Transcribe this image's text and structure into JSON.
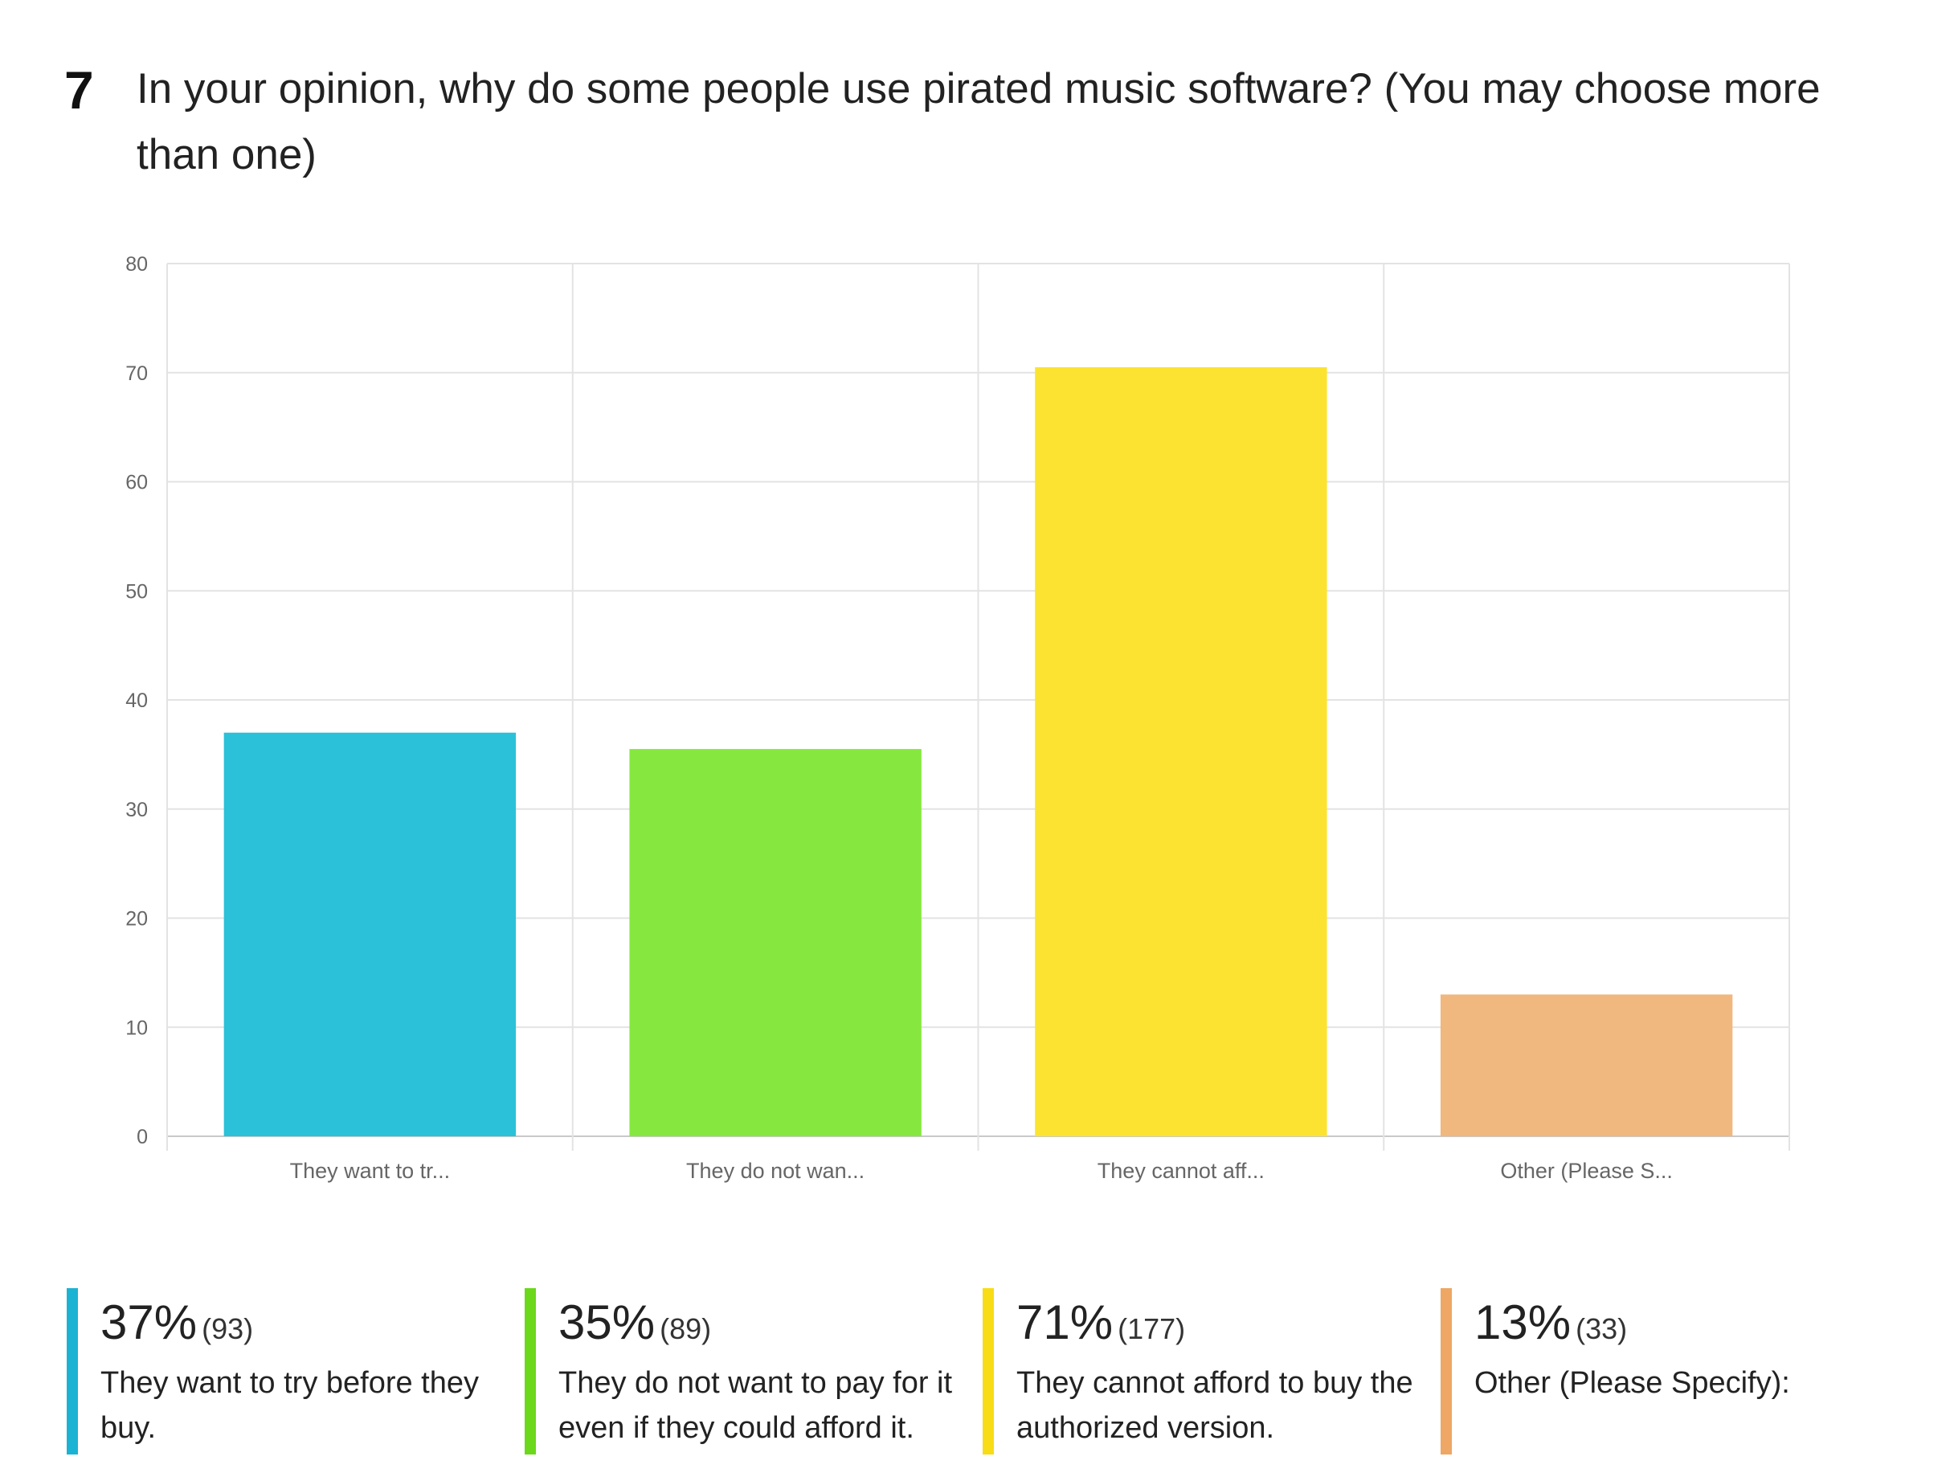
{
  "question": {
    "number": "7",
    "text": "In your opinion, why do some people use pirated music software? (You may choose more than one)"
  },
  "chart_data": {
    "type": "bar",
    "categories": [
      "They want to tr...",
      "They do not wan...",
      "They cannot aff...",
      "Other (Please S..."
    ],
    "values": [
      37,
      35.5,
      70.5,
      13
    ],
    "colors": [
      "#2ac1d9",
      "#86e83e",
      "#fce331",
      "#f0b77e"
    ],
    "ylim": [
      0,
      80
    ],
    "yticks": [
      0,
      10,
      20,
      30,
      40,
      50,
      60,
      70,
      80
    ],
    "grid": true
  },
  "legend": [
    {
      "percent": "37%",
      "count": "(93)",
      "label": "They want to try before they buy.",
      "color": "#1bb3d4"
    },
    {
      "percent": "35%",
      "count": "(89)",
      "label": "They do not want to pay for it even if they could afford it.",
      "color": "#6cd81c"
    },
    {
      "percent": "71%",
      "count": "(177)",
      "label": "They cannot afford to buy the authorized version.",
      "color": "#f8dc16"
    },
    {
      "percent": "13%",
      "count": "(33)",
      "label": "Other (Please Specify):",
      "color": "#eea764"
    }
  ]
}
